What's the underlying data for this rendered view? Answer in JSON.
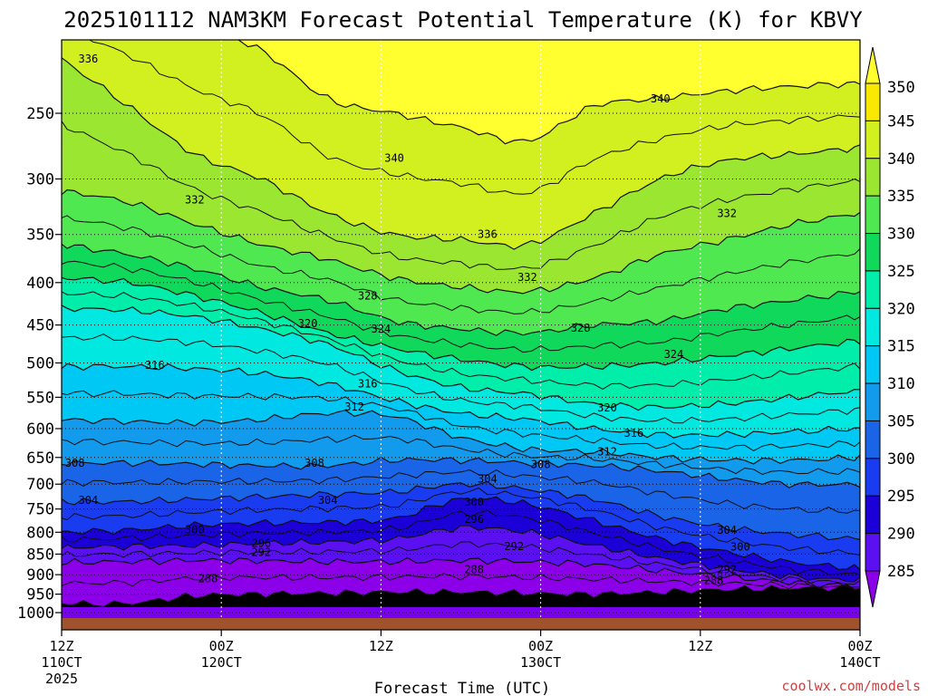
{
  "chart_data": {
    "type": "filled-contour",
    "title": "2025101112 NAM3KM Forecast Potential Temperature (K) for KBVY",
    "xlabel": "Forecast Time (UTC)",
    "ylabel": "",
    "x_ticks": [
      {
        "hour": 0,
        "label": "12Z",
        "sublabel": "110CT",
        "year": "2025"
      },
      {
        "hour": 12,
        "label": "00Z",
        "sublabel": "120CT"
      },
      {
        "hour": 24,
        "label": "12Z"
      },
      {
        "hour": 36,
        "label": "00Z",
        "sublabel": "130CT"
      },
      {
        "hour": 48,
        "label": "12Z"
      },
      {
        "hour": 60,
        "label": "00Z",
        "sublabel": "140CT"
      }
    ],
    "xlim": [
      0,
      60
    ],
    "y_ticks": [
      250,
      300,
      350,
      400,
      450,
      500,
      550,
      600,
      650,
      700,
      750,
      800,
      850,
      900,
      950,
      1000
    ],
    "ylim_hpa": [
      1020,
      200
    ],
    "colorbar": {
      "levels": [
        285,
        290,
        295,
        300,
        305,
        310,
        315,
        320,
        325,
        330,
        335,
        340,
        345,
        350
      ],
      "colors": [
        "#8b00e8",
        "#5a10f0",
        "#1c00d8",
        "#1a3cf0",
        "#1a64e8",
        "#129aec",
        "#00c8f4",
        "#00e8e0",
        "#00eeaa",
        "#10d85a",
        "#50e850",
        "#9ae630",
        "#d2f020",
        "#f8e800",
        "#ffff30"
      ]
    },
    "series": [
      {
        "name": "288",
        "hpa": [
          975,
          975,
          955,
          950,
          948,
          945,
          945,
          948,
          950,
          945,
          938,
          935,
          933
        ]
      },
      {
        "name": "292",
        "hpa": [
          870,
          868,
          865,
          866,
          868,
          868,
          865,
          868,
          875,
          890,
          905,
          920,
          930
        ]
      },
      {
        "name": "296",
        "hpa": [
          835,
          832,
          830,
          825,
          822,
          815,
          790,
          800,
          830,
          860,
          885,
          905,
          915
        ]
      },
      {
        "name": "300",
        "hpa": [
          800,
          795,
          785,
          780,
          778,
          770,
          730,
          740,
          775,
          815,
          845,
          870,
          885
        ]
      },
      {
        "name": "304",
        "hpa": [
          735,
          735,
          730,
          725,
          720,
          715,
          700,
          710,
          730,
          765,
          790,
          805,
          815
        ]
      },
      {
        "name": "308",
        "hpa": [
          660,
          660,
          662,
          665,
          665,
          655,
          655,
          660,
          665,
          675,
          690,
          700,
          700
        ]
      },
      {
        "name": "312",
        "hpa": [
          585,
          588,
          590,
          585,
          575,
          580,
          615,
          635,
          640,
          650,
          655,
          655,
          650
        ]
      },
      {
        "name": "316",
        "hpa": [
          505,
          505,
          508,
          515,
          530,
          555,
          575,
          585,
          600,
          610,
          610,
          605,
          600
        ]
      },
      {
        "name": "320",
        "hpa": [
          430,
          432,
          440,
          455,
          475,
          510,
          535,
          545,
          560,
          565,
          560,
          550,
          540
        ]
      },
      {
        "name": "324",
        "hpa": [
          395,
          400,
          415,
          435,
          460,
          480,
          495,
          505,
          505,
          500,
          490,
          480,
          470
        ]
      },
      {
        "name": "328",
        "hpa": [
          360,
          370,
          385,
          405,
          420,
          445,
          455,
          460,
          450,
          445,
          430,
          420,
          410
        ]
      },
      {
        "name": "332",
        "hpa": [
          310,
          320,
          340,
          360,
          375,
          395,
          405,
          410,
          395,
          370,
          355,
          340,
          330
        ]
      },
      {
        "name": "336",
        "hpa": [
          215,
          245,
          280,
          300,
          330,
          350,
          355,
          360,
          330,
          300,
          285,
          280,
          275
        ]
      },
      {
        "name": "340",
        "hpa": [
          180,
          185,
          195,
          210,
          240,
          250,
          260,
          270,
          245,
          240,
          235,
          232,
          230
        ]
      }
    ],
    "series_hours": [
      0,
      5,
      10,
      15,
      20,
      25,
      30,
      35,
      40,
      45,
      50,
      55,
      60
    ],
    "contour_labels": [
      {
        "text": "336",
        "hour": 2,
        "hpa": 215
      },
      {
        "text": "340",
        "hour": 45,
        "hpa": 240
      },
      {
        "text": "340",
        "hour": 25,
        "hpa": 283
      },
      {
        "text": "332",
        "hour": 10,
        "hpa": 318
      },
      {
        "text": "332",
        "hour": 50,
        "hpa": 330
      },
      {
        "text": "336",
        "hour": 32,
        "hpa": 350
      },
      {
        "text": "332",
        "hour": 35,
        "hpa": 394
      },
      {
        "text": "328",
        "hour": 23,
        "hpa": 415
      },
      {
        "text": "320",
        "hour": 18.5,
        "hpa": 448
      },
      {
        "text": "324",
        "hour": 24,
        "hpa": 455
      },
      {
        "text": "328",
        "hour": 39,
        "hpa": 454
      },
      {
        "text": "324",
        "hour": 46,
        "hpa": 488
      },
      {
        "text": "316",
        "hour": 7,
        "hpa": 503
      },
      {
        "text": "316",
        "hour": 23,
        "hpa": 530
      },
      {
        "text": "312",
        "hour": 22,
        "hpa": 565
      },
      {
        "text": "320",
        "hour": 41,
        "hpa": 566
      },
      {
        "text": "316",
        "hour": 43,
        "hpa": 608
      },
      {
        "text": "312",
        "hour": 41,
        "hpa": 640
      },
      {
        "text": "308",
        "hour": 1,
        "hpa": 660
      },
      {
        "text": "308",
        "hour": 19,
        "hpa": 660
      },
      {
        "text": "308",
        "hour": 36,
        "hpa": 663
      },
      {
        "text": "304",
        "hour": 32,
        "hpa": 690
      },
      {
        "text": "304",
        "hour": 2,
        "hpa": 732
      },
      {
        "text": "304",
        "hour": 20,
        "hpa": 732
      },
      {
        "text": "300",
        "hour": 31,
        "hpa": 736
      },
      {
        "text": "296",
        "hour": 31,
        "hpa": 772
      },
      {
        "text": "300",
        "hour": 10,
        "hpa": 794
      },
      {
        "text": "304",
        "hour": 50,
        "hpa": 795
      },
      {
        "text": "296",
        "hour": 15,
        "hpa": 825
      },
      {
        "text": "292",
        "hour": 15,
        "hpa": 846
      },
      {
        "text": "292",
        "hour": 34,
        "hpa": 832
      },
      {
        "text": "300",
        "hour": 51,
        "hpa": 833
      },
      {
        "text": "288",
        "hour": 31,
        "hpa": 887
      },
      {
        "text": "292",
        "hour": 50,
        "hpa": 887
      },
      {
        "text": "288",
        "hour": 11,
        "hpa": 910
      },
      {
        "text": "288",
        "hour": 49,
        "hpa": 915
      }
    ],
    "ground_color": "#a0522d"
  },
  "credit": "coolwx.com/models"
}
